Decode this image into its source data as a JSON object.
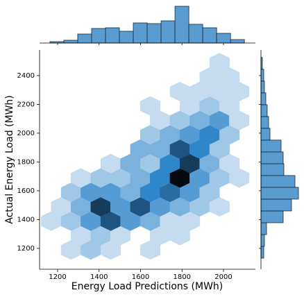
{
  "chart_data": {
    "type": "hexbin",
    "xlabel": "Energy Load Predictions (MWh)",
    "ylabel": "Actual Energy Load (MWh)",
    "xlim": [
      1113,
      2154
    ],
    "ylim": [
      1055,
      2578
    ],
    "xticks": [
      1200,
      1400,
      1600,
      1800,
      2000
    ],
    "yticks": [
      1200,
      1400,
      1600,
      1800,
      2000,
      2200,
      2400
    ],
    "cmap": [
      "#eaf2fa",
      "#2f86c9",
      "#040a10"
    ],
    "hist_color": "#5a9bd0",
    "hexes": {
      "x": [
        1265,
        1360,
        1456,
        1647,
        1312,
        1408,
        1503,
        1694,
        1790,
        1169,
        1265,
        1360,
        1456,
        1551,
        1647,
        1742,
        1838,
        1217,
        1312,
        1408,
        1503,
        1599,
        1694,
        1790,
        1885,
        1981,
        1265,
        1360,
        1456,
        1551,
        1647,
        1742,
        1838,
        1933,
        1312,
        1408,
        1503,
        1599,
        1694,
        1790,
        1885,
        1981,
        2076,
        1456,
        1551,
        1647,
        1742,
        1838,
        1933,
        2029,
        1599,
        1694,
        1790,
        1885,
        1981,
        1647,
        1742,
        1838,
        1933,
        2029,
        1694,
        1790,
        1885,
        1981,
        2076,
        1647,
        1838,
        1933,
        2029,
        1790,
        1885,
        1981,
        2076,
        1933,
        2029,
        1981
      ],
      "y": [
        1189,
        1189,
        1189,
        1189,
        1289,
        1289,
        1289,
        1289,
        1289,
        1389,
        1389,
        1389,
        1389,
        1389,
        1389,
        1389,
        1389,
        1489,
        1489,
        1489,
        1489,
        1489,
        1489,
        1489,
        1489,
        1489,
        1589,
        1589,
        1589,
        1589,
        1589,
        1589,
        1589,
        1589,
        1689,
        1689,
        1689,
        1689,
        1689,
        1689,
        1689,
        1689,
        1689,
        1789,
        1789,
        1789,
        1789,
        1789,
        1789,
        1789,
        1889,
        1889,
        1889,
        1889,
        1889,
        1989,
        1989,
        1989,
        1989,
        1989,
        2089,
        2089,
        2089,
        2089,
        2089,
        2189,
        2189,
        2189,
        2189,
        2289,
        2289,
        2289,
        2289,
        2389,
        2389,
        2489
      ],
      "values": [
        1,
        2,
        1,
        1,
        1,
        2,
        1,
        1,
        1,
        1,
        2,
        4,
        7,
        4,
        3,
        1,
        1,
        1,
        3,
        8,
        4,
        7,
        4,
        3,
        2,
        1,
        2,
        4,
        4,
        3,
        5,
        6,
        4,
        2,
        1,
        2,
        2,
        3,
        5,
        10,
        4,
        2,
        1,
        1,
        3,
        2,
        5,
        8,
        3,
        1,
        3,
        3,
        7,
        5,
        2,
        2,
        3,
        4,
        5,
        2,
        1,
        2,
        3,
        4,
        1,
        1,
        1,
        2,
        1,
        1,
        1,
        1,
        1,
        1,
        1,
        1
      ]
    },
    "top_hist": {
      "bins": [
        1163,
        1230,
        1297,
        1364,
        1431,
        1498,
        1565,
        1632,
        1699,
        1766,
        1833,
        1900,
        1967,
        2034,
        2101
      ],
      "counts": [
        2,
        4,
        13,
        21,
        22,
        17,
        29,
        28,
        32,
        53,
        27,
        22,
        14,
        5
      ]
    },
    "right_hist": {
      "bins": [
        1132,
        1214,
        1296,
        1378,
        1460,
        1542,
        1624,
        1706,
        1788,
        1870,
        1952,
        2034,
        2116,
        2198,
        2280,
        2362,
        2444,
        2526
      ],
      "counts": [
        4,
        5,
        8,
        32,
        44,
        54,
        49,
        33,
        32,
        29,
        13,
        11,
        9,
        7,
        5,
        4,
        2
      ]
    }
  }
}
